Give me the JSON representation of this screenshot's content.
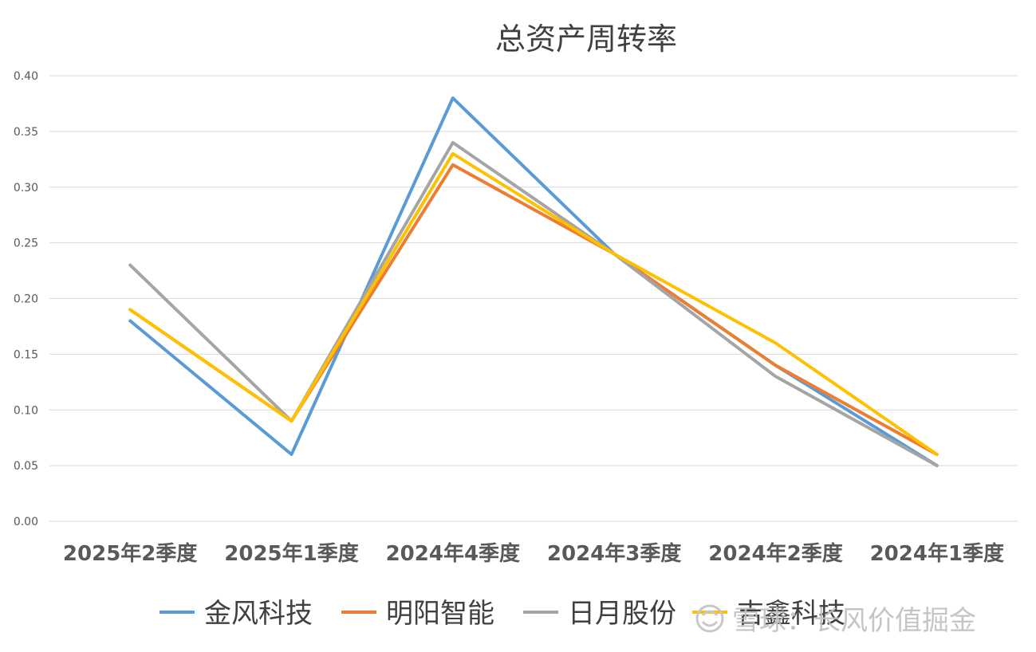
{
  "chart_data": {
    "type": "line",
    "title": "总资产周转率",
    "xlabel": "",
    "ylabel": "",
    "categories": [
      "2025年2季度",
      "2025年1季度",
      "2024年4季度",
      "2024年3季度",
      "2024年2季度",
      "2024年1季度"
    ],
    "ylim": [
      0,
      0.4
    ],
    "yticks": [
      "0.00",
      "0.05",
      "0.10",
      "0.15",
      "0.20",
      "0.25",
      "0.30",
      "0.35",
      "0.40"
    ],
    "grid": true,
    "legend": "bottom",
    "series": [
      {
        "name": "金风科技",
        "color": "#5b9bd5",
        "values": [
          0.18,
          0.06,
          0.38,
          0.24,
          0.14,
          0.05
        ]
      },
      {
        "name": "明阳智能",
        "color": "#ed7d31",
        "values": [
          0.19,
          0.09,
          0.32,
          0.24,
          0.14,
          0.06
        ]
      },
      {
        "name": "日月股份",
        "color": "#a5a5a5",
        "values": [
          0.23,
          0.09,
          0.34,
          0.24,
          0.13,
          0.05
        ]
      },
      {
        "name": "吉鑫科技",
        "color": "#ffc000",
        "values": [
          0.19,
          0.09,
          0.33,
          0.24,
          0.16,
          0.06
        ]
      }
    ]
  },
  "watermark": {
    "text": "雪球：长风价值掘金",
    "icon": "snowball-logo-icon"
  }
}
